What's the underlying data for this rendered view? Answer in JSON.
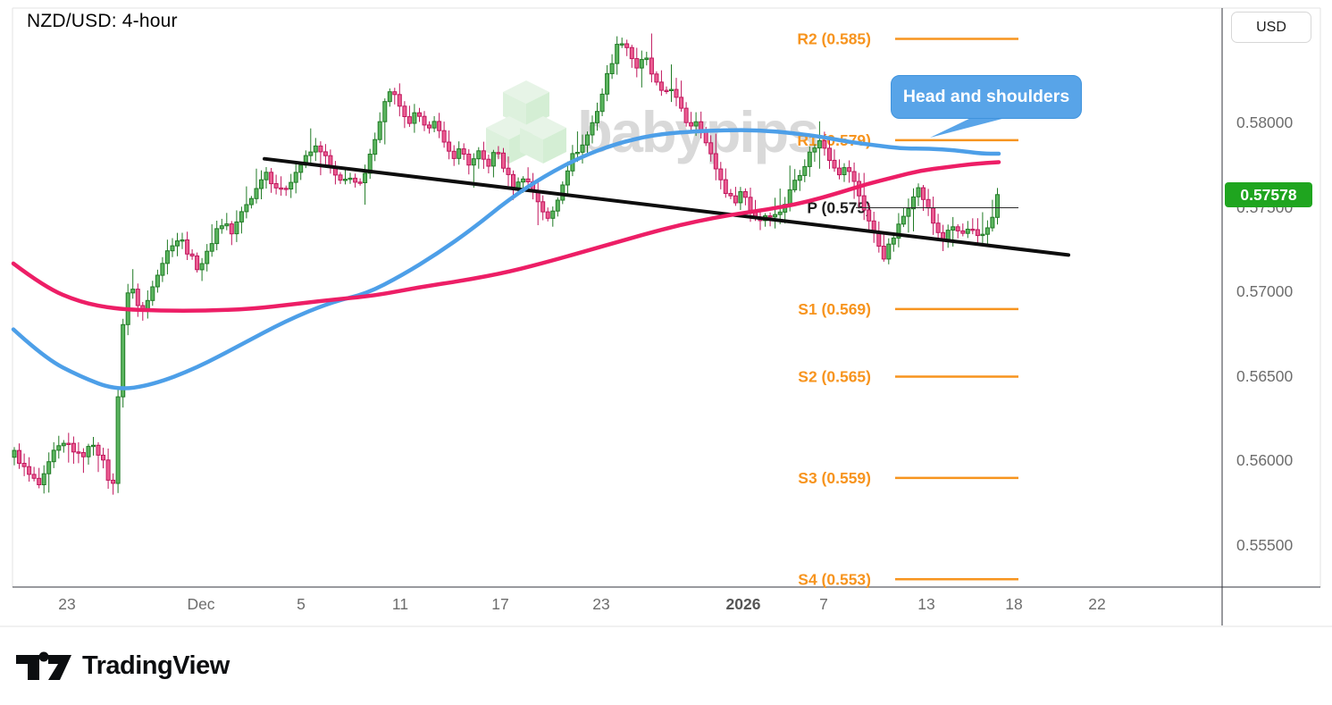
{
  "header": {
    "title": "NZD/USD: 4-hour"
  },
  "price_axis": {
    "currency_button": "USD",
    "ticks": [
      {
        "label": "0.58000",
        "value": 0.58
      },
      {
        "label": "0.57500",
        "value": 0.575
      },
      {
        "label": "0.57000",
        "value": 0.57
      },
      {
        "label": "0.56500",
        "value": 0.565
      },
      {
        "label": "0.56000",
        "value": 0.56
      },
      {
        "label": "0.55500",
        "value": 0.555
      }
    ],
    "last_price_badge": {
      "text": "0.57578",
      "color": "#1fa51f"
    }
  },
  "time_axis": {
    "labels": [
      {
        "text": "23",
        "x": 75
      },
      {
        "text": "Dec",
        "x": 225
      },
      {
        "text": "5",
        "x": 337
      },
      {
        "text": "11",
        "x": 448
      },
      {
        "text": "17",
        "x": 560
      },
      {
        "text": "23",
        "x": 673
      },
      {
        "text": "2026",
        "x": 832
      },
      {
        "text": "7",
        "x": 922
      },
      {
        "text": "13",
        "x": 1037
      },
      {
        "text": "18",
        "x": 1135
      },
      {
        "text": "22",
        "x": 1228
      }
    ]
  },
  "watermark": {
    "brand": "babypips"
  },
  "annotation": {
    "callout_text": "Head and shoulders",
    "fill": "#58a4e8",
    "border": "#3f93dd"
  },
  "footer": {
    "brand": "TradingView"
  },
  "theme": {
    "orange": "#f7941e",
    "blue_ma": "#4d9fe8",
    "pink_ma": "#ed1e66",
    "trendline": "#0d0d0d",
    "frame_dark": "#33363d",
    "frame_light": "#e3e3e3",
    "axis_text": "#6d6d6d",
    "watermark_text": "#c7c7c7",
    "cube_top": "#e3f3e3",
    "cube_left": "#d8efd8",
    "cube_right": "#cdeccd"
  },
  "chart_data": {
    "type": "candlestick",
    "title": "NZD/USD: 4-hour",
    "symbol": "NZD/USD",
    "timeframe": "4-hour",
    "last_price": 0.57578,
    "ylim": [
      0.5524,
      0.5869
    ],
    "y_ticks": [
      0.58,
      0.575,
      0.57,
      0.565,
      0.56,
      0.555
    ],
    "x_tick_labels": [
      "23",
      "Dec",
      "5",
      "11",
      "17",
      "23",
      "2026",
      "7",
      "13",
      "18",
      "22"
    ],
    "pivots": [
      {
        "label": "R2 (0.585)",
        "value": 0.585,
        "style": "orange"
      },
      {
        "label": "R1 (0.579)",
        "value": 0.579,
        "style": "orange"
      },
      {
        "label": "P (0.575)",
        "value": 0.575,
        "style": "black"
      },
      {
        "label": "S1 (0.569)",
        "value": 0.569,
        "style": "orange"
      },
      {
        "label": "S2 (0.565)",
        "value": 0.565,
        "style": "orange"
      },
      {
        "label": "S3 (0.559)",
        "value": 0.559,
        "style": "orange"
      },
      {
        "label": "S4 (0.553)",
        "value": 0.553,
        "style": "orange"
      }
    ],
    "pattern_annotation": "Head and shoulders",
    "candles": {
      "start_x": 16,
      "end_x": 1118,
      "step": 5.53,
      "width": 4,
      "up": {
        "fill": "#5cb660",
        "border": "#1f7a24"
      },
      "down": {
        "fill": "#eb5d92",
        "border": "#c0155c"
      }
    },
    "close_waypoints": [
      [
        16,
        0.5605
      ],
      [
        30,
        0.5593
      ],
      [
        45,
        0.5585
      ],
      [
        60,
        0.5605
      ],
      [
        75,
        0.5611
      ],
      [
        90,
        0.5602
      ],
      [
        105,
        0.5611
      ],
      [
        118,
        0.5596
      ],
      [
        126,
        0.558
      ],
      [
        131,
        0.5629
      ],
      [
        136,
        0.5676
      ],
      [
        143,
        0.5698
      ],
      [
        150,
        0.5704
      ],
      [
        156,
        0.5687
      ],
      [
        163,
        0.5691
      ],
      [
        172,
        0.5707
      ],
      [
        182,
        0.5718
      ],
      [
        192,
        0.5729
      ],
      [
        202,
        0.5732
      ],
      [
        212,
        0.5722
      ],
      [
        222,
        0.5714
      ],
      [
        232,
        0.5723
      ],
      [
        242,
        0.5737
      ],
      [
        252,
        0.5742
      ],
      [
        260,
        0.5734
      ],
      [
        268,
        0.5745
      ],
      [
        277,
        0.5753
      ],
      [
        287,
        0.5761
      ],
      [
        296,
        0.5773
      ],
      [
        306,
        0.5764
      ],
      [
        316,
        0.5759
      ],
      [
        326,
        0.5767
      ],
      [
        336,
        0.5775
      ],
      [
        346,
        0.5782
      ],
      [
        356,
        0.5787
      ],
      [
        364,
        0.578
      ],
      [
        372,
        0.5771
      ],
      [
        382,
        0.5764
      ],
      [
        392,
        0.5769
      ],
      [
        402,
        0.5762
      ],
      [
        410,
        0.5771
      ],
      [
        420,
        0.5793
      ],
      [
        430,
        0.5811
      ],
      [
        438,
        0.5822
      ],
      [
        446,
        0.581
      ],
      [
        456,
        0.5799
      ],
      [
        466,
        0.5806
      ],
      [
        476,
        0.5796
      ],
      [
        486,
        0.5803
      ],
      [
        496,
        0.5788
      ],
      [
        506,
        0.578
      ],
      [
        516,
        0.5785
      ],
      [
        526,
        0.5775
      ],
      [
        536,
        0.5782
      ],
      [
        546,
        0.5775
      ],
      [
        556,
        0.5785
      ],
      [
        566,
        0.5771
      ],
      [
        576,
        0.5761
      ],
      [
        586,
        0.5769
      ],
      [
        596,
        0.5761
      ],
      [
        606,
        0.575
      ],
      [
        614,
        0.5742
      ],
      [
        623,
        0.5753
      ],
      [
        632,
        0.5769
      ],
      [
        642,
        0.5782
      ],
      [
        652,
        0.5787
      ],
      [
        660,
        0.5796
      ],
      [
        670,
        0.581
      ],
      [
        680,
        0.5829
      ],
      [
        690,
        0.5845
      ],
      [
        698,
        0.585
      ],
      [
        706,
        0.584
      ],
      [
        714,
        0.5832
      ],
      [
        722,
        0.584
      ],
      [
        731,
        0.5827
      ],
      [
        741,
        0.5817
      ],
      [
        751,
        0.5822
      ],
      [
        761,
        0.5809
      ],
      [
        771,
        0.5798
      ],
      [
        781,
        0.5803
      ],
      [
        791,
        0.5787
      ],
      [
        801,
        0.5774
      ],
      [
        811,
        0.5761
      ],
      [
        821,
        0.5753
      ],
      [
        831,
        0.5761
      ],
      [
        839,
        0.575
      ],
      [
        849,
        0.5742
      ],
      [
        859,
        0.5747
      ],
      [
        869,
        0.5745
      ],
      [
        879,
        0.5753
      ],
      [
        889,
        0.5766
      ],
      [
        899,
        0.5774
      ],
      [
        909,
        0.5785
      ],
      [
        919,
        0.579
      ],
      [
        929,
        0.5779
      ],
      [
        939,
        0.5771
      ],
      [
        949,
        0.5774
      ],
      [
        959,
        0.5761
      ],
      [
        969,
        0.5747
      ],
      [
        979,
        0.5734
      ],
      [
        989,
        0.5721
      ],
      [
        997,
        0.5729
      ],
      [
        1006,
        0.5739
      ],
      [
        1016,
        0.575
      ],
      [
        1026,
        0.5763
      ],
      [
        1036,
        0.5753
      ],
      [
        1046,
        0.5739
      ],
      [
        1056,
        0.5731
      ],
      [
        1066,
        0.5739
      ],
      [
        1076,
        0.5734
      ],
      [
        1086,
        0.5737
      ],
      [
        1096,
        0.5731
      ],
      [
        1106,
        0.5739
      ],
      [
        1112,
        0.5747
      ],
      [
        1118,
        0.57578
      ]
    ],
    "ma_fast_blue": [
      [
        15,
        0.5678
      ],
      [
        50,
        0.5661
      ],
      [
        90,
        0.565
      ],
      [
        130,
        0.5642
      ],
      [
        170,
        0.5645
      ],
      [
        220,
        0.5655
      ],
      [
        270,
        0.5669
      ],
      [
        320,
        0.5683
      ],
      [
        370,
        0.5694
      ],
      [
        410,
        0.5699
      ],
      [
        450,
        0.571
      ],
      [
        490,
        0.5723
      ],
      [
        530,
        0.5738
      ],
      [
        570,
        0.5755
      ],
      [
        610,
        0.5769
      ],
      [
        650,
        0.578
      ],
      [
        690,
        0.5788
      ],
      [
        730,
        0.5793
      ],
      [
        770,
        0.5795
      ],
      [
        810,
        0.5796
      ],
      [
        850,
        0.5796
      ],
      [
        890,
        0.5794
      ],
      [
        920,
        0.5792
      ],
      [
        950,
        0.5789
      ],
      [
        980,
        0.5787
      ],
      [
        1010,
        0.5785
      ],
      [
        1040,
        0.5785
      ],
      [
        1070,
        0.5784
      ],
      [
        1100,
        0.5782
      ],
      [
        1118,
        0.5782
      ]
    ],
    "ma_slow_pink": [
      [
        15,
        0.5717
      ],
      [
        50,
        0.5703
      ],
      [
        90,
        0.5694
      ],
      [
        130,
        0.569
      ],
      [
        180,
        0.5689
      ],
      [
        230,
        0.5689
      ],
      [
        280,
        0.569
      ],
      [
        330,
        0.5693
      ],
      [
        380,
        0.5696
      ],
      [
        420,
        0.5698
      ],
      [
        470,
        0.5703
      ],
      [
        520,
        0.5707
      ],
      [
        570,
        0.5712
      ],
      [
        620,
        0.5719
      ],
      [
        660,
        0.5725
      ],
      [
        700,
        0.5731
      ],
      [
        740,
        0.5737
      ],
      [
        780,
        0.5742
      ],
      [
        820,
        0.5746
      ],
      [
        860,
        0.5749
      ],
      [
        900,
        0.5753
      ],
      [
        940,
        0.5759
      ],
      [
        970,
        0.5764
      ],
      [
        1000,
        0.5768
      ],
      [
        1030,
        0.5772
      ],
      [
        1060,
        0.5774
      ],
      [
        1090,
        0.5776
      ],
      [
        1118,
        0.5777
      ]
    ],
    "trendline": {
      "x1": 296,
      "p1": 0.5779,
      "x2": 1196,
      "p2": 0.5722
    }
  }
}
